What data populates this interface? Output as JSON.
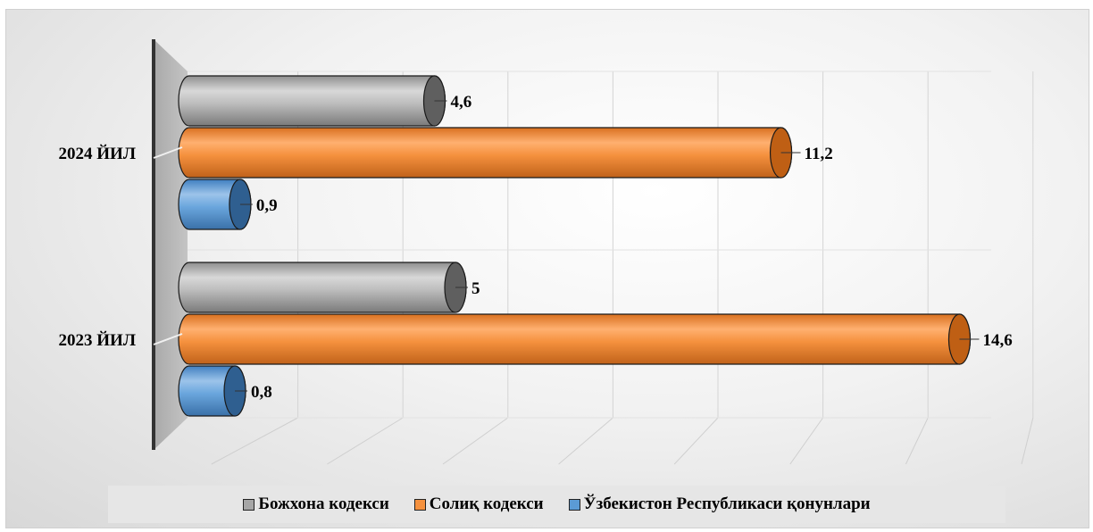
{
  "chart_data": {
    "type": "bar",
    "orientation": "horizontal",
    "style": "3d-cylinder",
    "categories": [
      "2024 ЙИЛ",
      "2023 ЙИЛ"
    ],
    "series": [
      {
        "name": "Божхона кодекси",
        "values": [
          4.6,
          5
        ],
        "labels": [
          "4,6",
          "5"
        ],
        "color": "#a6a6a6"
      },
      {
        "name": "Солиқ кодекси",
        "values": [
          11.2,
          14.6
        ],
        "labels": [
          "11,2",
          "14,6"
        ],
        "color": "#f5913e"
      },
      {
        "name": "Ўзбекистон Республикаси қонунлари",
        "values": [
          0.9,
          0.8
        ],
        "labels": [
          "0,9",
          "0,8"
        ],
        "color": "#5b9bd5"
      }
    ],
    "xlim": [
      0,
      16
    ],
    "grid": true,
    "legend_position": "bottom"
  }
}
